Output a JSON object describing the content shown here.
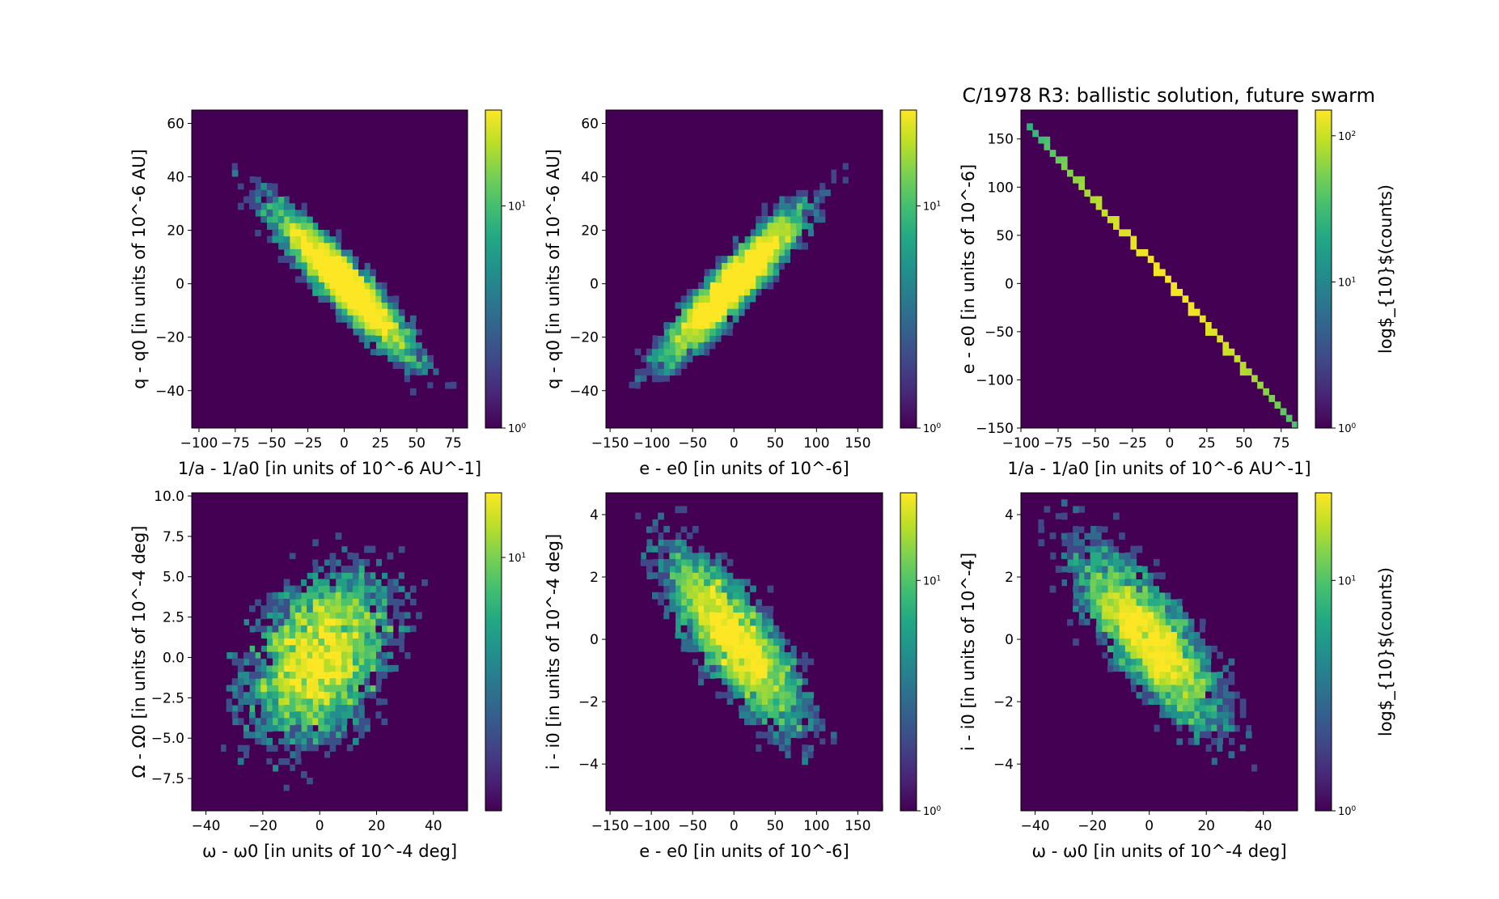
{
  "figure": {
    "title": "C/1978 R3:  ballistic solution, future swarm",
    "background_color": "#440154",
    "colormap": "viridis",
    "colorbar_label": "log$_{10}$(counts)"
  },
  "chart_data": [
    {
      "type": "heatmap",
      "panel": "top-left",
      "xlabel": "1/a - 1/a0 [in units of 10^-6 AU^-1]",
      "ylabel": "q - q0 [in units of 10^-6 AU]",
      "xlim": [
        -105,
        85
      ],
      "ylim": [
        -54,
        65
      ],
      "xticks": [
        -100,
        -75,
        -50,
        -25,
        0,
        25,
        50,
        75
      ],
      "yticks": [
        -40,
        -20,
        0,
        20,
        40,
        60
      ],
      "distribution": {
        "center": [
          0,
          0
        ],
        "sd": [
          24,
          14
        ],
        "correlation": -0.92
      },
      "color_scale": "log",
      "cmax": 27,
      "colorbar_ticks": [
        {
          "label": "10^0",
          "value": 1
        },
        {
          "label": "10^1",
          "value": 10
        }
      ]
    },
    {
      "type": "heatmap",
      "panel": "top-middle",
      "xlabel": "e - e0 [in units of 10^-6]",
      "ylabel": "q - q0 [in units of 10^-6 AU]",
      "xlim": [
        -155,
        180
      ],
      "ylim": [
        -54,
        65
      ],
      "xticks": [
        -150,
        -100,
        -50,
        0,
        50,
        100,
        150
      ],
      "yticks": [
        -40,
        -20,
        0,
        20,
        40,
        60
      ],
      "distribution": {
        "center": [
          0,
          0
        ],
        "sd": [
          42,
          14
        ],
        "correlation": 0.92
      },
      "color_scale": "log",
      "cmax": 27,
      "colorbar_ticks": [
        {
          "label": "10^0",
          "value": 1
        },
        {
          "label": "10^1",
          "value": 10
        }
      ]
    },
    {
      "type": "heatmap",
      "panel": "top-right",
      "xlabel": "1/a - 1/a0 [in units of 10^-6 AU^-1]",
      "ylabel": "e - e0 [in units of 10^-6]",
      "xlim": [
        -100,
        86
      ],
      "ylim": [
        -150,
        180
      ],
      "xticks": [
        -100,
        -75,
        -50,
        -25,
        0,
        25,
        50,
        75
      ],
      "yticks": [
        -150,
        -100,
        -50,
        0,
        50,
        100,
        150
      ],
      "line": {
        "x_range": [
          -93,
          83
        ],
        "slope": -1.74,
        "peak_count": 140
      },
      "color_scale": "log",
      "cmax": 150,
      "colorbar_label": "log$_{10}$(counts)",
      "colorbar_ticks": [
        {
          "label": "10^0",
          "value": 1
        },
        {
          "label": "10^1",
          "value": 10
        },
        {
          "label": "10^2",
          "value": 100
        }
      ]
    },
    {
      "type": "heatmap",
      "panel": "bottom-left",
      "xlabel": "ω - ω0 [in units of 10^-4 deg]",
      "ylabel": "Ω - Ω0 [in units of 10^-4 deg]",
      "xlim": [
        -45,
        52
      ],
      "ylim": [
        -9.5,
        10.2
      ],
      "xticks": [
        -40,
        -20,
        0,
        20,
        40
      ],
      "yticks": [
        -7.5,
        -5.0,
        -2.5,
        0.0,
        2.5,
        5.0,
        7.5,
        10.0
      ],
      "ytick_labels": [
        "−7.5",
        "−5.0",
        "−2.5",
        "0.0",
        "2.5",
        "5.0",
        "7.5",
        "10.0"
      ],
      "distribution": {
        "center": [
          0,
          0
        ],
        "sd": [
          13,
          2.8
        ],
        "correlation": 0.38
      },
      "color_scale": "log",
      "cmax": 18,
      "colorbar_ticks": [
        {
          "label": "10^1",
          "value": 10
        }
      ]
    },
    {
      "type": "heatmap",
      "panel": "bottom-middle",
      "xlabel": "e - e0 [in units of 10^-6]",
      "ylabel": "i - i0 [in units of 10^-4 deg]",
      "xlim": [
        -155,
        180
      ],
      "ylim": [
        -5.5,
        4.7
      ],
      "xticks": [
        -150,
        -100,
        -50,
        0,
        50,
        100,
        150
      ],
      "yticks": [
        -4,
        -2,
        0,
        2,
        4
      ],
      "distribution": {
        "center": [
          0,
          0
        ],
        "sd": [
          42,
          1.45
        ],
        "correlation": -0.78
      },
      "color_scale": "log",
      "cmax": 24,
      "colorbar_ticks": [
        {
          "label": "10^0",
          "value": 1
        },
        {
          "label": "10^1",
          "value": 10
        }
      ]
    },
    {
      "type": "heatmap",
      "panel": "bottom-right",
      "xlabel": "ω - ω0 [in units of 10^-4 deg]",
      "ylabel": "i - i0 [in units of 10^-4]",
      "xlim": [
        -45,
        52
      ],
      "ylim": [
        -5.5,
        4.7
      ],
      "xticks": [
        -40,
        -20,
        0,
        20,
        40
      ],
      "yticks": [
        -4,
        -2,
        0,
        2,
        4
      ],
      "distribution": {
        "center": [
          0,
          0
        ],
        "sd": [
          13,
          1.45
        ],
        "correlation": -0.78
      },
      "color_scale": "log",
      "cmax": 24,
      "colorbar_label": "log$_{10}$(counts)",
      "colorbar_ticks": [
        {
          "label": "10^0",
          "value": 1
        },
        {
          "label": "10^1",
          "value": 10
        }
      ]
    }
  ]
}
